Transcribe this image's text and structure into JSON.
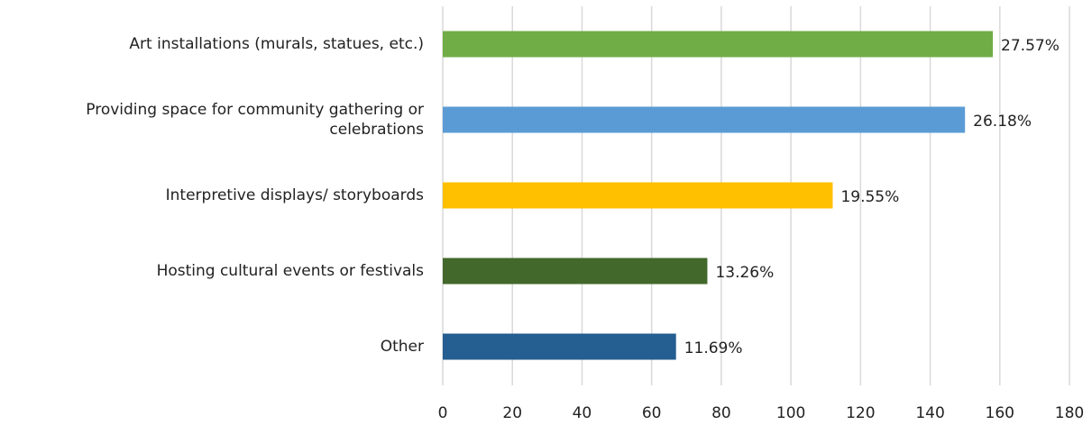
{
  "chart_data": {
    "type": "bar",
    "orientation": "horizontal",
    "categories": [
      "Art installations (murals, statues, etc.)",
      "Providing space for community gathering or\ncelebrations",
      "Interpretive displays/ storyboards",
      "Hosting cultural events or festivals",
      "Other"
    ],
    "values": [
      158,
      150,
      112,
      76,
      67
    ],
    "data_labels": [
      "27.57%",
      "26.18%",
      "19.55%",
      "13.26%",
      "11.69%"
    ],
    "colors": [
      "#70ad47",
      "#5b9bd5",
      "#ffc000",
      "#43682b",
      "#255e91"
    ],
    "xlim": [
      0,
      180
    ],
    "xticks": [
      0,
      20,
      40,
      60,
      80,
      100,
      120,
      140,
      160,
      180
    ],
    "grid": true
  }
}
